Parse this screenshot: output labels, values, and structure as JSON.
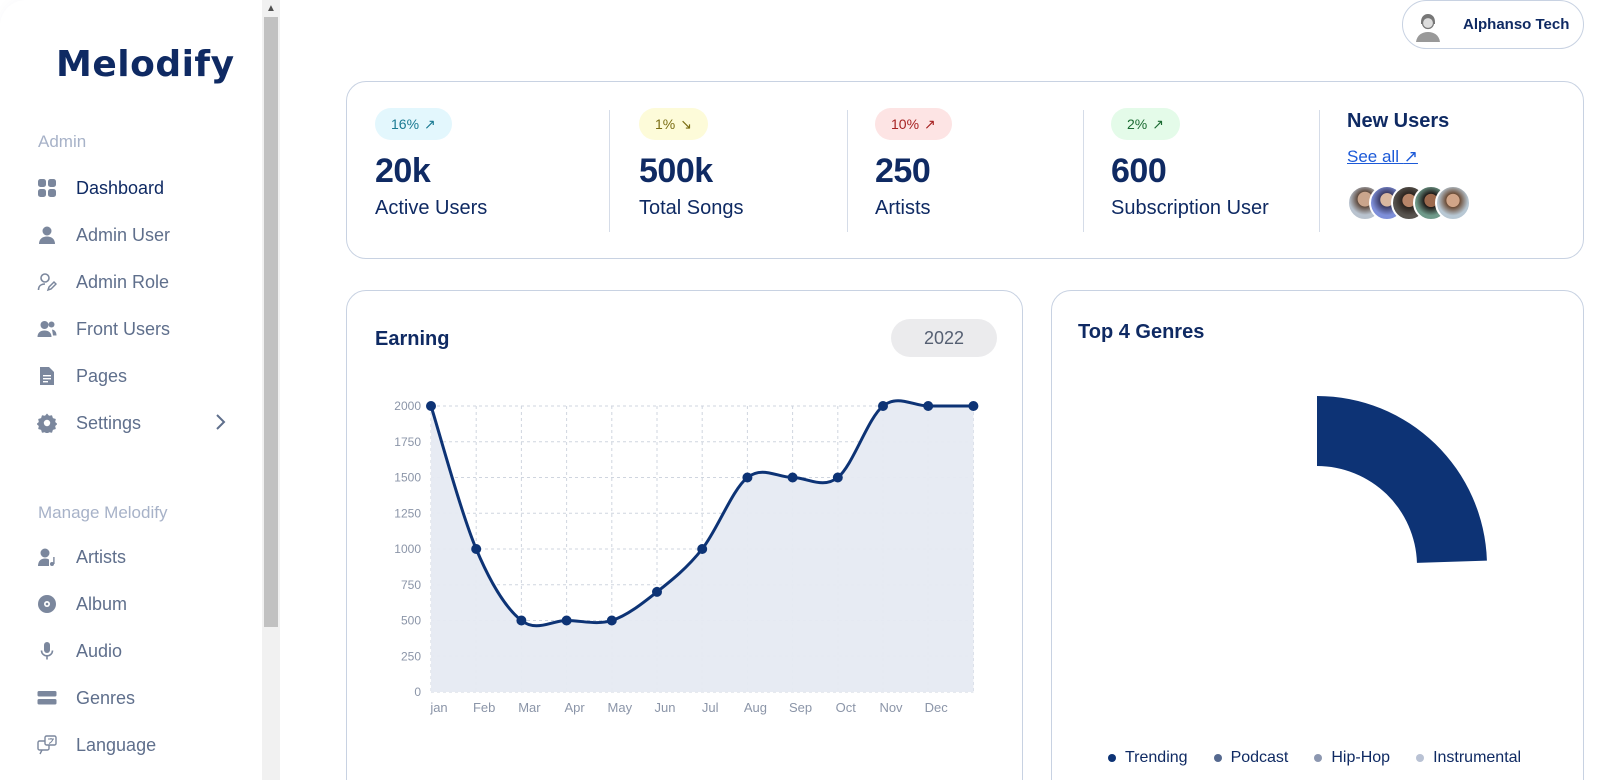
{
  "app": {
    "logo": "Melodify"
  },
  "sidebar": {
    "admin_heading": "Admin",
    "admin_items": [
      {
        "label": "Dashboard",
        "icon": "grid-icon",
        "active": true
      },
      {
        "label": "Admin User",
        "icon": "user-icon"
      },
      {
        "label": "Admin Role",
        "icon": "user-edit-icon"
      },
      {
        "label": "Front Users",
        "icon": "users-icon"
      },
      {
        "label": "Pages",
        "icon": "document-icon"
      },
      {
        "label": "Settings",
        "icon": "gear-icon",
        "has_submenu": true
      }
    ],
    "manage_heading": "Manage Melodify",
    "manage_items": [
      {
        "label": "Artists",
        "icon": "artist-icon"
      },
      {
        "label": "Album",
        "icon": "disc-icon"
      },
      {
        "label": "Audio",
        "icon": "microphone-icon"
      },
      {
        "label": "Genres",
        "icon": "genres-icon"
      },
      {
        "label": "Language",
        "icon": "language-icon"
      }
    ]
  },
  "profile": {
    "name": "Alphanso Tech",
    "icon": "user-avatar-icon"
  },
  "stats": [
    {
      "badge": "16%",
      "trend": "up",
      "value": "20k",
      "label": "Active Users",
      "badge_bg": "#e3f7fd",
      "badge_color": "#1a7a92"
    },
    {
      "badge": "1%",
      "trend": "down",
      "value": "500k",
      "label": "Total Songs",
      "badge_bg": "#fdfbd9",
      "badge_color": "#7a6d12"
    },
    {
      "badge": "10%",
      "trend": "up",
      "value": "250",
      "label": "Artists",
      "badge_bg": "#fde4e4",
      "badge_color": "#a62222"
    },
    {
      "badge": "2%",
      "trend": "up",
      "value": "600",
      "label": "Subscription User",
      "badge_bg": "#e4fbe9",
      "badge_color": "#1b6b32"
    }
  ],
  "new_users": {
    "title": "New Users",
    "link": "See all",
    "avatar_count": 5
  },
  "earning": {
    "title": "Earning",
    "year": "2022"
  },
  "genres": {
    "title": "Top 4 Genres",
    "legend": [
      {
        "label": "Trending",
        "color": "#0d3375"
      },
      {
        "label": "Podcast",
        "color": "#55698f"
      },
      {
        "label": "Hip-Hop",
        "color": "#8c97b0"
      },
      {
        "label": "Instrumental",
        "color": "#b9c2d4"
      }
    ]
  },
  "chart_data": [
    {
      "type": "area",
      "title": "Earning",
      "categories": [
        "jan",
        "Feb",
        "Mar",
        "Apr",
        "May",
        "Jun",
        "Jul",
        "Aug",
        "Sep",
        "Oct",
        "Nov",
        "Dec",
        ""
      ],
      "values": [
        2000,
        1000,
        500,
        500,
        500,
        700,
        1000,
        1500,
        1500,
        1500,
        2000,
        2000,
        2000
      ],
      "ylim": [
        0,
        2000
      ],
      "yticks": [
        0,
        250,
        500,
        750,
        1000,
        1250,
        1500,
        1750,
        2000
      ],
      "grid": true,
      "color": "#0d3375",
      "fill": "#e6eaf2"
    },
    {
      "type": "pie",
      "title": "Top 4 Genres",
      "categories": [
        "Trending",
        "Podcast",
        "Hip-Hop",
        "Instrumental"
      ],
      "values": [
        25,
        0,
        0,
        0
      ],
      "legend": "bottom"
    }
  ]
}
